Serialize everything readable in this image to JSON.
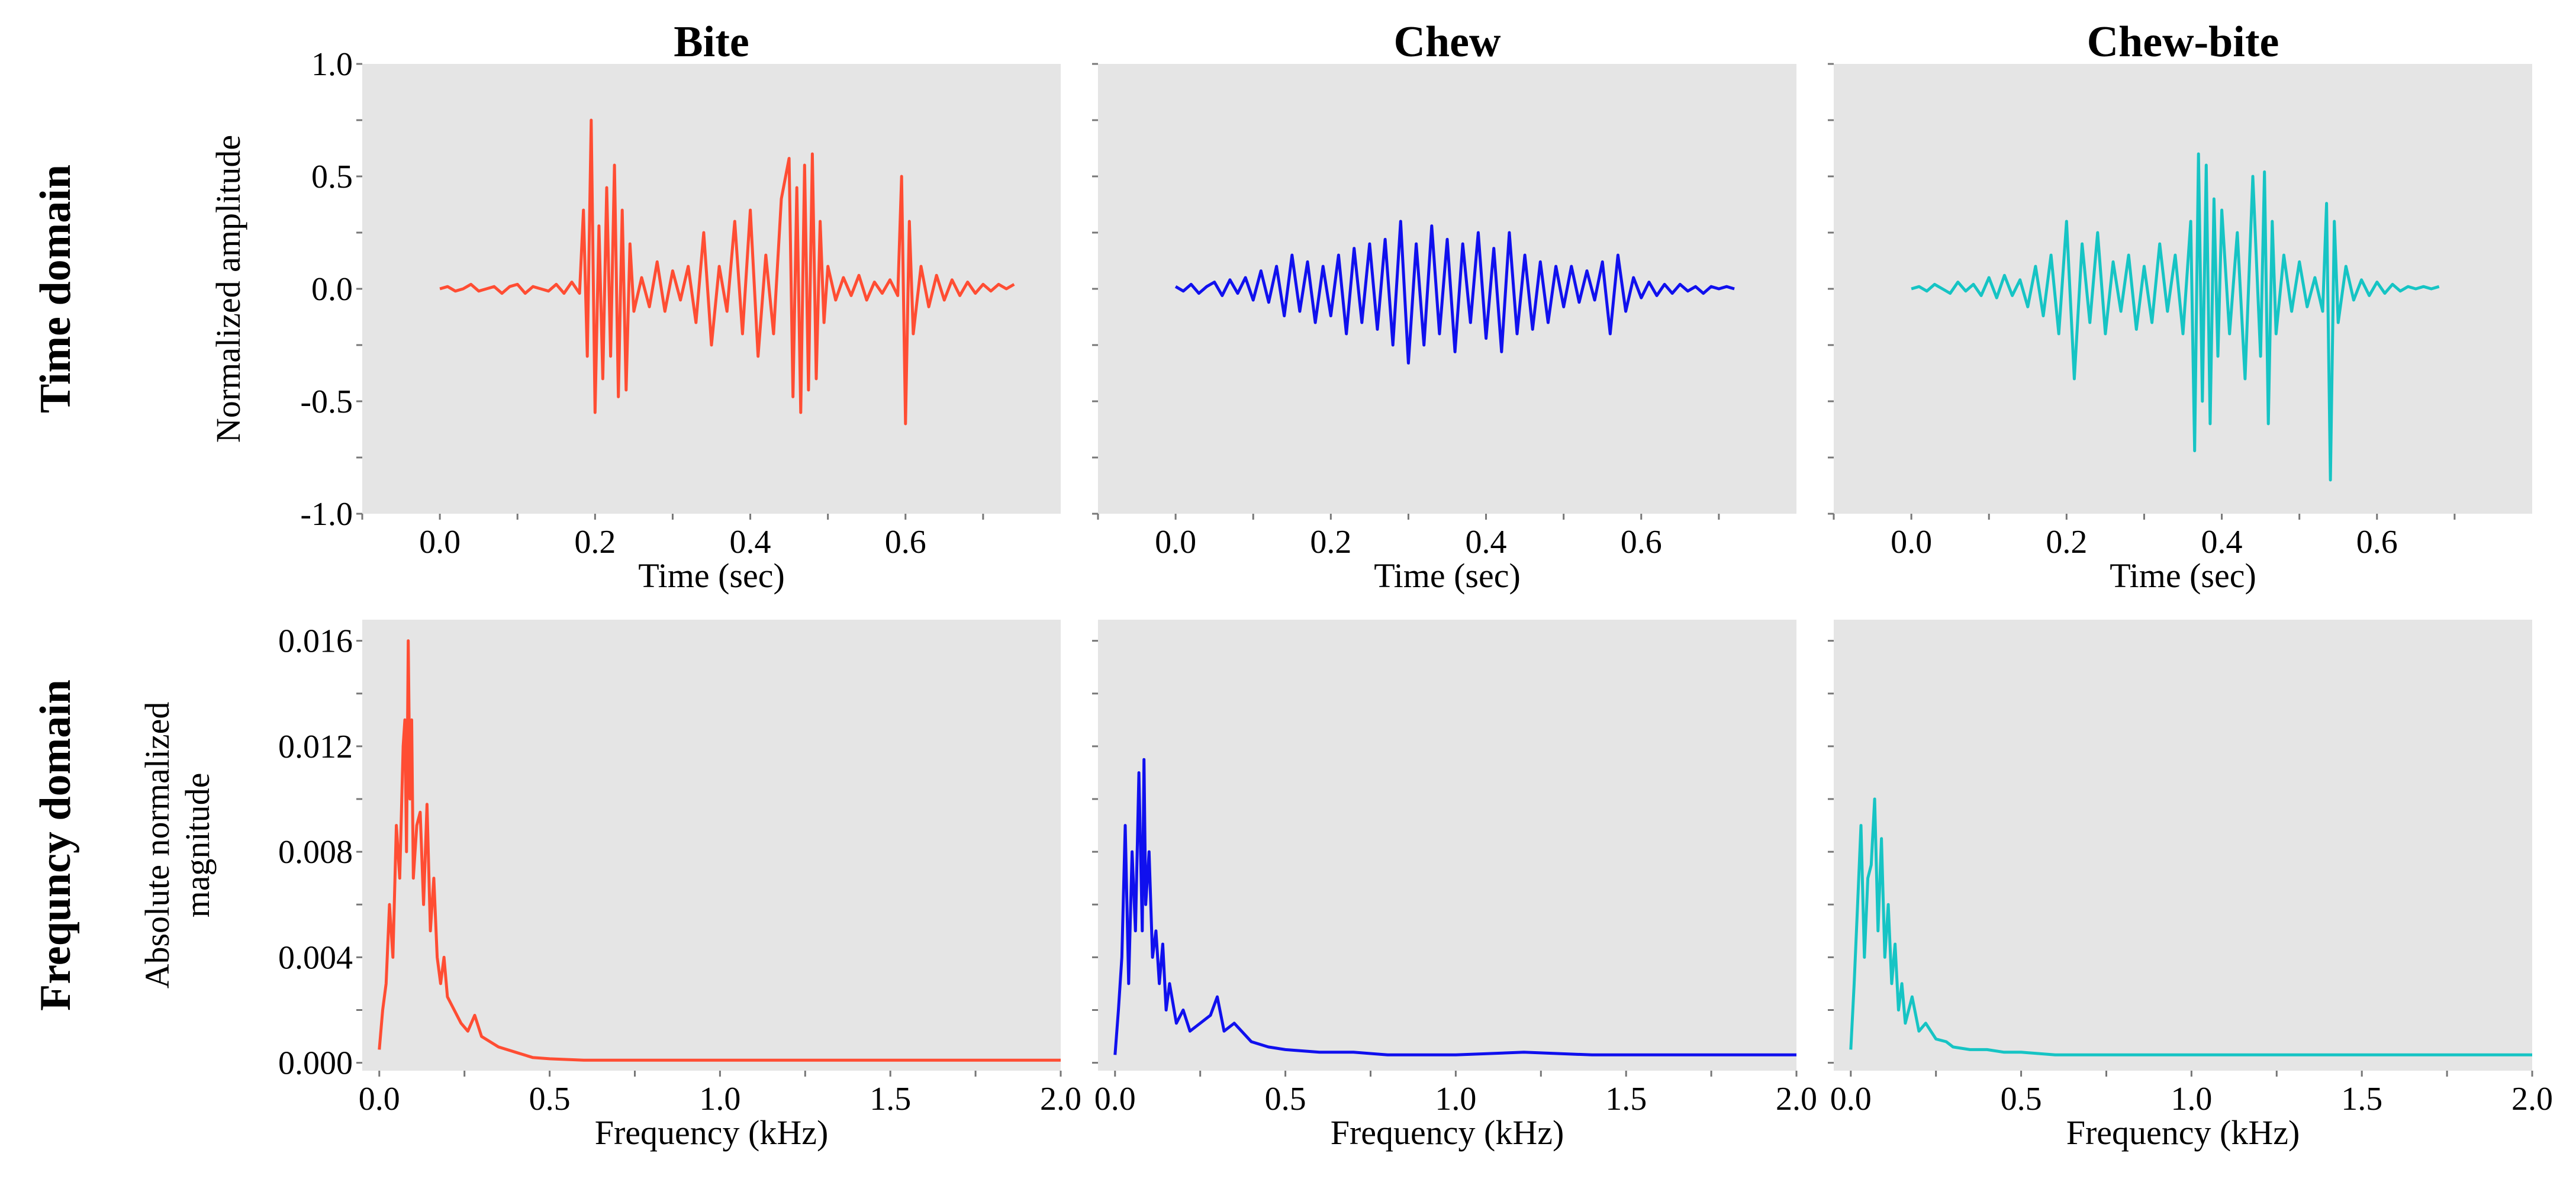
{
  "figure": {
    "column_titles": [
      "Bite",
      "Chew",
      "Chew-bite"
    ],
    "row_labels": [
      "Time domain",
      "Frequncy domain"
    ]
  },
  "colors": {
    "bite": "#ff4d33",
    "chew": "#1010ee",
    "chewbite": "#16c4c4",
    "panel_bg": "#e5e5e5",
    "tick": "#777777"
  },
  "chart_data": [
    {
      "type": "line",
      "title": "Bite",
      "row": "Time domain",
      "xlabel": "Time (sec)",
      "ylabel": "Normalized amplitude",
      "xlim": [
        -0.1,
        0.8
      ],
      "ylim": [
        -1.0,
        1.0
      ],
      "xticks": [
        0.0,
        0.2,
        0.4,
        0.6
      ],
      "xtick_labels": [
        "0.0",
        "0.2",
        "0.4",
        "0.6"
      ],
      "yticks": [
        1.0,
        0.5,
        0.0,
        -0.5,
        -1.0
      ],
      "ytick_labels": [
        "1.0",
        "0.5",
        "0.0",
        "-0.5",
        "-1.0"
      ],
      "color": "#ff4d33",
      "series": [
        {
          "name": "Bite",
          "x": [
            0.0,
            0.01,
            0.02,
            0.03,
            0.04,
            0.05,
            0.06,
            0.07,
            0.08,
            0.09,
            0.1,
            0.11,
            0.12,
            0.13,
            0.14,
            0.15,
            0.16,
            0.17,
            0.18,
            0.185,
            0.19,
            0.195,
            0.2,
            0.205,
            0.21,
            0.215,
            0.22,
            0.225,
            0.23,
            0.235,
            0.24,
            0.245,
            0.25,
            0.26,
            0.27,
            0.28,
            0.29,
            0.3,
            0.31,
            0.32,
            0.33,
            0.34,
            0.35,
            0.36,
            0.37,
            0.38,
            0.39,
            0.4,
            0.41,
            0.42,
            0.43,
            0.44,
            0.45,
            0.455,
            0.46,
            0.465,
            0.47,
            0.475,
            0.48,
            0.485,
            0.49,
            0.495,
            0.5,
            0.51,
            0.52,
            0.53,
            0.54,
            0.55,
            0.56,
            0.57,
            0.58,
            0.59,
            0.595,
            0.6,
            0.605,
            0.61,
            0.62,
            0.63,
            0.64,
            0.65,
            0.66,
            0.67,
            0.68,
            0.69,
            0.7,
            0.71,
            0.72,
            0.73,
            0.74
          ],
          "y": [
            0.0,
            0.01,
            -0.01,
            0.0,
            0.02,
            -0.01,
            0.0,
            0.01,
            -0.02,
            0.01,
            0.02,
            -0.02,
            0.01,
            0.0,
            -0.01,
            0.02,
            -0.02,
            0.03,
            -0.02,
            0.35,
            -0.3,
            0.75,
            -0.55,
            0.28,
            -0.4,
            0.45,
            -0.3,
            0.55,
            -0.48,
            0.35,
            -0.45,
            0.2,
            -0.1,
            0.05,
            -0.08,
            0.12,
            -0.1,
            0.08,
            -0.05,
            0.1,
            -0.15,
            0.25,
            -0.25,
            0.1,
            -0.1,
            0.3,
            -0.2,
            0.35,
            -0.3,
            0.15,
            -0.2,
            0.4,
            0.58,
            -0.48,
            0.45,
            -0.55,
            0.55,
            -0.45,
            0.6,
            -0.4,
            0.3,
            -0.15,
            0.1,
            -0.05,
            0.05,
            -0.03,
            0.06,
            -0.05,
            0.03,
            -0.02,
            0.04,
            -0.03,
            0.5,
            -0.6,
            0.3,
            -0.2,
            0.1,
            -0.08,
            0.06,
            -0.05,
            0.04,
            -0.03,
            0.03,
            -0.02,
            0.02,
            -0.01,
            0.02,
            0.0,
            0.02
          ]
        }
      ]
    },
    {
      "type": "line",
      "title": "Chew",
      "row": "Time domain",
      "xlabel": "Time (sec)",
      "ylabel": "",
      "xlim": [
        -0.1,
        0.8
      ],
      "ylim": [
        -1.0,
        1.0
      ],
      "xticks": [
        0.0,
        0.2,
        0.4,
        0.6
      ],
      "xtick_labels": [
        "0.0",
        "0.2",
        "0.4",
        "0.6"
      ],
      "yticks": [
        1.0,
        0.5,
        0.0,
        -0.5,
        -1.0
      ],
      "ytick_labels": [
        "",
        "",
        "",
        "",
        ""
      ],
      "color": "#1010ee",
      "series": [
        {
          "name": "Chew",
          "x": [
            0.0,
            0.01,
            0.02,
            0.03,
            0.04,
            0.05,
            0.06,
            0.07,
            0.08,
            0.09,
            0.1,
            0.11,
            0.12,
            0.13,
            0.14,
            0.15,
            0.16,
            0.17,
            0.18,
            0.19,
            0.2,
            0.21,
            0.22,
            0.23,
            0.24,
            0.25,
            0.26,
            0.27,
            0.28,
            0.29,
            0.3,
            0.31,
            0.32,
            0.33,
            0.34,
            0.35,
            0.36,
            0.37,
            0.38,
            0.39,
            0.4,
            0.41,
            0.42,
            0.43,
            0.44,
            0.45,
            0.46,
            0.47,
            0.48,
            0.49,
            0.5,
            0.51,
            0.52,
            0.53,
            0.54,
            0.55,
            0.56,
            0.57,
            0.58,
            0.59,
            0.6,
            0.61,
            0.62,
            0.63,
            0.64,
            0.65,
            0.66,
            0.67,
            0.68,
            0.69,
            0.7,
            0.71,
            0.72
          ],
          "y": [
            0.01,
            -0.01,
            0.02,
            -0.02,
            0.01,
            0.03,
            -0.03,
            0.04,
            -0.02,
            0.05,
            -0.05,
            0.08,
            -0.06,
            0.1,
            -0.12,
            0.15,
            -0.1,
            0.12,
            -0.15,
            0.1,
            -0.12,
            0.15,
            -0.2,
            0.18,
            -0.15,
            0.2,
            -0.18,
            0.22,
            -0.25,
            0.3,
            -0.33,
            0.2,
            -0.25,
            0.28,
            -0.2,
            0.22,
            -0.28,
            0.2,
            -0.15,
            0.25,
            -0.22,
            0.18,
            -0.28,
            0.25,
            -0.2,
            0.15,
            -0.18,
            0.12,
            -0.15,
            0.1,
            -0.08,
            0.1,
            -0.06,
            0.08,
            -0.05,
            0.12,
            -0.2,
            0.15,
            -0.1,
            0.05,
            -0.04,
            0.03,
            -0.03,
            0.02,
            -0.02,
            0.02,
            -0.01,
            0.01,
            -0.02,
            0.01,
            0.0,
            0.01,
            0.0
          ]
        }
      ]
    },
    {
      "type": "line",
      "title": "Chew-bite",
      "row": "Time domain",
      "xlabel": "Time (sec)",
      "ylabel": "",
      "xlim": [
        -0.1,
        0.8
      ],
      "ylim": [
        -1.0,
        1.0
      ],
      "xticks": [
        0.0,
        0.2,
        0.4,
        0.6
      ],
      "xtick_labels": [
        "0.0",
        "0.2",
        "0.4",
        "0.6"
      ],
      "yticks": [
        1.0,
        0.5,
        0.0,
        -0.5,
        -1.0
      ],
      "ytick_labels": [
        "",
        "",
        "",
        "",
        ""
      ],
      "color": "#16c4c4",
      "series": [
        {
          "name": "Chew-bite",
          "x": [
            0.0,
            0.01,
            0.02,
            0.03,
            0.04,
            0.05,
            0.06,
            0.07,
            0.08,
            0.09,
            0.1,
            0.11,
            0.12,
            0.13,
            0.14,
            0.15,
            0.16,
            0.17,
            0.18,
            0.19,
            0.2,
            0.21,
            0.22,
            0.23,
            0.24,
            0.25,
            0.26,
            0.27,
            0.28,
            0.29,
            0.3,
            0.31,
            0.32,
            0.33,
            0.34,
            0.35,
            0.36,
            0.365,
            0.37,
            0.375,
            0.38,
            0.385,
            0.39,
            0.395,
            0.4,
            0.41,
            0.42,
            0.43,
            0.44,
            0.45,
            0.455,
            0.46,
            0.465,
            0.47,
            0.48,
            0.49,
            0.5,
            0.51,
            0.52,
            0.53,
            0.535,
            0.54,
            0.545,
            0.55,
            0.56,
            0.57,
            0.58,
            0.59,
            0.6,
            0.61,
            0.62,
            0.63,
            0.64,
            0.65,
            0.66,
            0.67,
            0.68
          ],
          "y": [
            0.0,
            0.01,
            -0.01,
            0.02,
            0.0,
            -0.02,
            0.03,
            -0.01,
            0.02,
            -0.03,
            0.05,
            -0.04,
            0.06,
            -0.03,
            0.04,
            -0.08,
            0.1,
            -0.12,
            0.15,
            -0.2,
            0.3,
            -0.4,
            0.2,
            -0.15,
            0.25,
            -0.2,
            0.12,
            -0.1,
            0.15,
            -0.18,
            0.1,
            -0.15,
            0.2,
            -0.1,
            0.15,
            -0.2,
            0.3,
            -0.72,
            0.6,
            -0.5,
            0.55,
            -0.6,
            0.4,
            -0.3,
            0.35,
            -0.2,
            0.25,
            -0.4,
            0.5,
            -0.3,
            0.52,
            -0.6,
            0.3,
            -0.2,
            0.15,
            -0.1,
            0.12,
            -0.08,
            0.05,
            -0.1,
            0.38,
            -0.85,
            0.3,
            -0.15,
            0.1,
            -0.05,
            0.04,
            -0.03,
            0.03,
            -0.02,
            0.02,
            -0.01,
            0.01,
            0.0,
            0.01,
            0.0,
            0.01
          ]
        }
      ]
    },
    {
      "type": "line",
      "title": "Bite",
      "row": "Frequncy domain",
      "xlabel": "Frequency (kHz)",
      "ylabel": "Absolute normalized magnitude",
      "xlim": [
        -0.05,
        2.0
      ],
      "ylim": [
        -0.0003,
        0.0168
      ],
      "xticks": [
        0.0,
        0.5,
        1.0,
        1.5,
        2.0
      ],
      "xtick_labels": [
        "0.0",
        "0.5",
        "1.0",
        "1.5",
        "2.0"
      ],
      "yticks": [
        0.016,
        0.012,
        0.008,
        0.004,
        0.0
      ],
      "ytick_labels": [
        "0.016",
        "0.012",
        "0.008",
        "0.004",
        "0.000"
      ],
      "color": "#ff4d33",
      "series": [
        {
          "name": "Bite",
          "x": [
            0.0,
            0.01,
            0.02,
            0.03,
            0.04,
            0.05,
            0.06,
            0.07,
            0.075,
            0.08,
            0.085,
            0.09,
            0.095,
            0.1,
            0.11,
            0.12,
            0.13,
            0.14,
            0.15,
            0.16,
            0.17,
            0.18,
            0.19,
            0.2,
            0.22,
            0.24,
            0.26,
            0.28,
            0.3,
            0.35,
            0.4,
            0.45,
            0.5,
            0.6,
            0.8,
            1.0,
            1.5,
            2.0
          ],
          "y": [
            0.0005,
            0.002,
            0.003,
            0.006,
            0.004,
            0.009,
            0.007,
            0.012,
            0.013,
            0.008,
            0.016,
            0.01,
            0.013,
            0.007,
            0.009,
            0.0095,
            0.006,
            0.0098,
            0.005,
            0.007,
            0.004,
            0.003,
            0.004,
            0.0025,
            0.002,
            0.0015,
            0.0012,
            0.0018,
            0.001,
            0.0006,
            0.0004,
            0.0002,
            0.00015,
            0.0001,
            0.0001,
            0.0001,
            0.0001,
            0.0001
          ]
        }
      ]
    },
    {
      "type": "line",
      "title": "Chew",
      "row": "Frequncy domain",
      "xlabel": "Frequency (kHz)",
      "ylabel": "",
      "xlim": [
        -0.05,
        2.0
      ],
      "ylim": [
        -0.0003,
        0.0168
      ],
      "xticks": [
        0.0,
        0.5,
        1.0,
        1.5,
        2.0
      ],
      "xtick_labels": [
        "0.0",
        "0.5",
        "1.0",
        "1.5",
        "2.0"
      ],
      "yticks": [
        0.016,
        0.012,
        0.008,
        0.004,
        0.0
      ],
      "ytick_labels": [
        "",
        "",
        "",
        "",
        ""
      ],
      "color": "#1010ee",
      "series": [
        {
          "name": "Chew",
          "x": [
            0.0,
            0.01,
            0.02,
            0.03,
            0.04,
            0.05,
            0.06,
            0.07,
            0.08,
            0.085,
            0.09,
            0.1,
            0.11,
            0.12,
            0.13,
            0.14,
            0.15,
            0.16,
            0.18,
            0.2,
            0.22,
            0.25,
            0.28,
            0.3,
            0.32,
            0.35,
            0.4,
            0.45,
            0.5,
            0.6,
            0.7,
            0.8,
            1.0,
            1.2,
            1.4,
            1.6,
            1.8,
            2.0
          ],
          "y": [
            0.0003,
            0.002,
            0.004,
            0.009,
            0.003,
            0.008,
            0.005,
            0.011,
            0.005,
            0.0115,
            0.006,
            0.008,
            0.004,
            0.005,
            0.003,
            0.0045,
            0.002,
            0.003,
            0.0015,
            0.002,
            0.0012,
            0.0015,
            0.0018,
            0.0025,
            0.0012,
            0.0015,
            0.0008,
            0.0006,
            0.0005,
            0.0004,
            0.0004,
            0.0003,
            0.0003,
            0.0004,
            0.0003,
            0.0003,
            0.0003,
            0.0003
          ]
        }
      ]
    },
    {
      "type": "line",
      "title": "Chew-bite",
      "row": "Frequncy domain",
      "xlabel": "Frequency (kHz)",
      "ylabel": "",
      "xlim": [
        -0.05,
        2.0
      ],
      "ylim": [
        -0.0003,
        0.0168
      ],
      "xticks": [
        0.0,
        0.5,
        1.0,
        1.5,
        2.0
      ],
      "xtick_labels": [
        "0.0",
        "0.5",
        "1.0",
        "1.5",
        "2.0"
      ],
      "yticks": [
        0.016,
        0.012,
        0.008,
        0.004,
        0.0
      ],
      "ytick_labels": [
        "",
        "",
        "",
        "",
        ""
      ],
      "color": "#16c4c4",
      "series": [
        {
          "name": "Chew-bite",
          "x": [
            0.0,
            0.01,
            0.02,
            0.03,
            0.04,
            0.05,
            0.06,
            0.07,
            0.08,
            0.09,
            0.1,
            0.11,
            0.12,
            0.13,
            0.14,
            0.15,
            0.16,
            0.18,
            0.2,
            0.22,
            0.25,
            0.28,
            0.3,
            0.35,
            0.4,
            0.45,
            0.5,
            0.6,
            0.8,
            1.0,
            1.2,
            1.5,
            1.8,
            2.0
          ],
          "y": [
            0.0005,
            0.003,
            0.006,
            0.009,
            0.004,
            0.007,
            0.0075,
            0.01,
            0.005,
            0.0085,
            0.004,
            0.006,
            0.003,
            0.0045,
            0.002,
            0.003,
            0.0015,
            0.0025,
            0.0012,
            0.0015,
            0.0009,
            0.0008,
            0.0006,
            0.0005,
            0.0005,
            0.0004,
            0.0004,
            0.0003,
            0.0003,
            0.0003,
            0.0003,
            0.0003,
            0.0003,
            0.0003
          ]
        }
      ]
    }
  ]
}
